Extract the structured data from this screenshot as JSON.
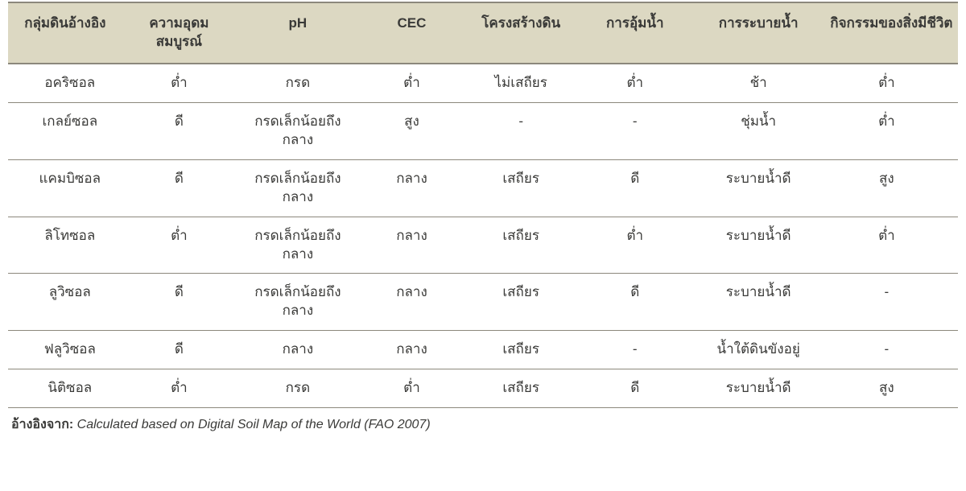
{
  "table": {
    "columns": [
      "กลุ่มดินอ้างอิง",
      "ความอุดมสมบูรณ์",
      "pH",
      "CEC",
      "โครงสร้างดิน",
      "การอุ้มน้ำ",
      "การระบายน้ำ",
      "กิจกรรมของสิ่งมีชีวิต"
    ],
    "column_widths_pct": [
      12,
      12,
      13,
      11,
      12,
      12,
      14,
      14
    ],
    "header_bg": "#dcd8c2",
    "header_border": "#8c887c",
    "row_border": "#8c887c",
    "text_color": "#3a3a38",
    "header_fontsize": 17,
    "cell_fontsize": 17,
    "rows": [
      [
        "อคริซอล",
        "ต่ำ",
        "กรด",
        "ต่ำ",
        "ไม่เสถียร",
        "ต่ำ",
        "ช้า",
        "ต่ำ"
      ],
      [
        "เกลย์ซอล",
        "ดี",
        "กรดเล็กน้อยถึงกลาง",
        "สูง",
        "-",
        "-",
        "ชุ่มน้ำ",
        "ต่ำ"
      ],
      [
        "แคมบิซอล",
        "ดี",
        "กรดเล็กน้อยถึงกลาง",
        "กลาง",
        "เสถียร",
        "ดี",
        "ระบายน้ำดี",
        "สูง"
      ],
      [
        "ลิโทซอล",
        "ต่ำ",
        "กรดเล็กน้อยถึงกลาง",
        "กลาง",
        "เสถียร",
        "ต่ำ",
        "ระบายน้ำดี",
        "ต่ำ"
      ],
      [
        "ลูวิซอล",
        "ดี",
        "กรดเล็กน้อยถึงกลาง",
        "กลาง",
        "เสถียร",
        "ดี",
        "ระบายน้ำดี",
        "-"
      ],
      [
        "ฟลูวิซอล",
        "ดี",
        "กลาง",
        "กลาง",
        "เสถียร",
        "-",
        "น้ำใต้ดินขังอยู่",
        "-"
      ],
      [
        "นิติซอล",
        "ต่ำ",
        "กรด",
        "ต่ำ",
        "เสถียร",
        "ดี",
        "ระบายน้ำดี",
        "สูง"
      ]
    ]
  },
  "footnote": {
    "label": "อ้างอิงจาก:",
    "text": " Calculated based on Digital Soil Map of the World (FAO 2007)"
  }
}
